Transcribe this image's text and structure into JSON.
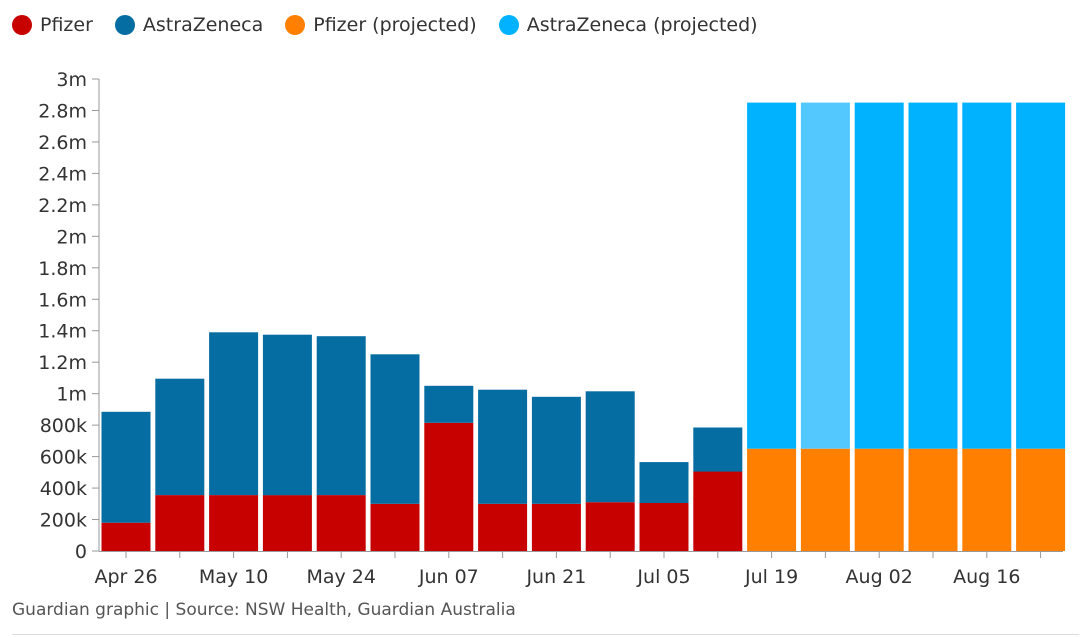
{
  "legend": [
    {
      "label": "Pfizer",
      "color": "#c70000"
    },
    {
      "label": "AstraZeneca",
      "color": "#056da1"
    },
    {
      "label": "Pfizer (projected)",
      "color": "#ff7f00"
    },
    {
      "label": "AstraZeneca (projected)",
      "color": "#00b2ff"
    }
  ],
  "chart_data": {
    "type": "bar",
    "stacked": true,
    "categories": [
      "Apr 26",
      "May 03",
      "May 10",
      "May 17",
      "May 24",
      "May 31",
      "Jun 07",
      "Jun 14",
      "Jun 21",
      "Jun 28",
      "Jul 05",
      "Jul 12",
      "Jul 19",
      "Jul 26",
      "Aug 02",
      "Aug 09",
      "Aug 16",
      "Aug 23"
    ],
    "x_tick_labels": [
      "Apr 26",
      "May 10",
      "May 24",
      "Jun 07",
      "Jun 21",
      "Jul 05",
      "Jul 19",
      "Aug 02",
      "Aug 16"
    ],
    "series": [
      {
        "name": "Pfizer",
        "color": "#c70000",
        "values": [
          180000,
          355000,
          355000,
          355000,
          355000,
          300000,
          815000,
          300000,
          300000,
          310000,
          305000,
          505000,
          null,
          null,
          null,
          null,
          null,
          null
        ]
      },
      {
        "name": "AstraZeneca",
        "color": "#056da1",
        "values": [
          705000,
          740000,
          1035000,
          1020000,
          1010000,
          950000,
          235000,
          725000,
          680000,
          705000,
          260000,
          280000,
          null,
          null,
          null,
          null,
          null,
          null
        ]
      },
      {
        "name": "Pfizer (projected)",
        "color": "#ff7f00",
        "values": [
          null,
          null,
          null,
          null,
          null,
          null,
          null,
          null,
          null,
          null,
          null,
          null,
          650000,
          650000,
          650000,
          650000,
          650000,
          650000
        ]
      },
      {
        "name": "AstraZeneca (projected)",
        "color": "#00b2ff",
        "highlight_color": "#52c8ff",
        "highlight_index": 13,
        "values": [
          null,
          null,
          null,
          null,
          null,
          null,
          null,
          null,
          null,
          null,
          null,
          null,
          2200000,
          2200000,
          2200000,
          2200000,
          2200000,
          2200000
        ]
      }
    ],
    "y_ticks": [
      0,
      200000,
      400000,
      600000,
      800000,
      1000000,
      1200000,
      1400000,
      1600000,
      1800000,
      2000000,
      2200000,
      2400000,
      2600000,
      2800000,
      3000000
    ],
    "y_tick_labels": [
      "0",
      "200k",
      "400k",
      "600k",
      "800k",
      "1m",
      "1.2m",
      "1.4m",
      "1.6m",
      "1.8m",
      "2m",
      "2.2m",
      "2.4m",
      "2.6m",
      "2.8m",
      "3m"
    ],
    "ylim": [
      0,
      3000000
    ],
    "grid": false,
    "legend_position": "top-left"
  },
  "source": "Guardian graphic | Source: NSW Health, Guardian Australia"
}
